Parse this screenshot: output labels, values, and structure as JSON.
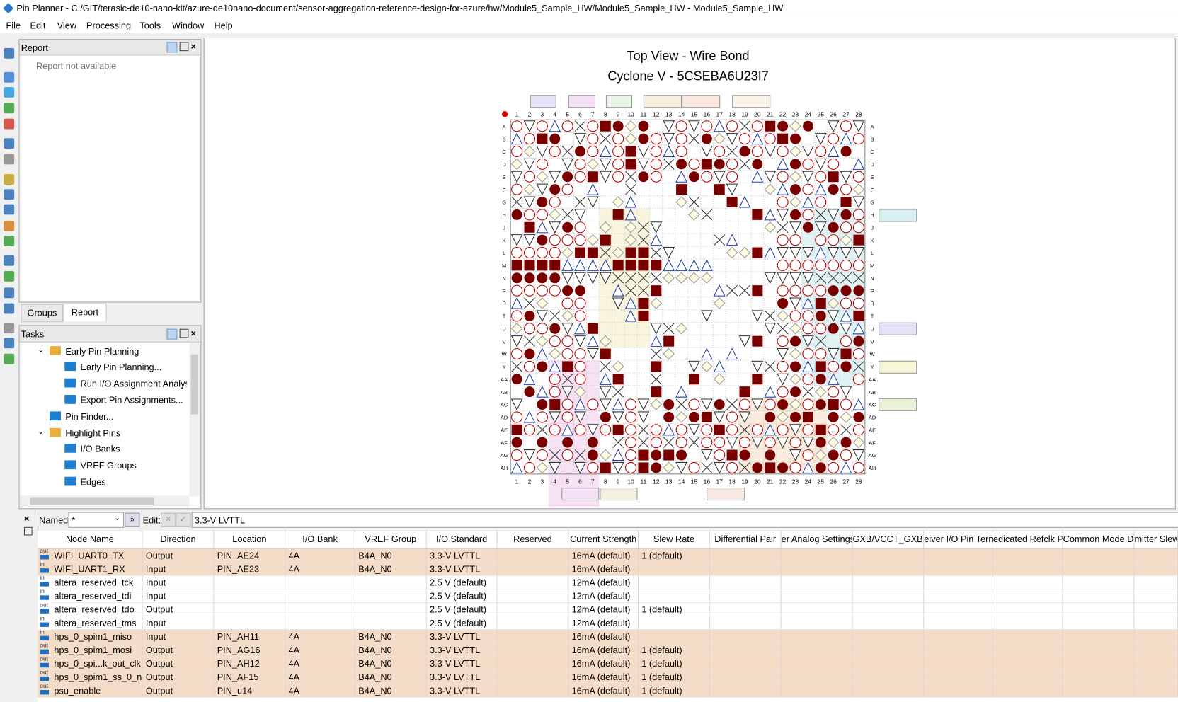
{
  "window": {
    "title": "Pin Planner - C:/GIT/terasic-de10-nano-kit/azure-de10nano-document/sensor-aggregation-reference-design-for-azure/hw/Module5_Sample_HW/Module5_Sample_HW - Module5_Sample_HW"
  },
  "menu": [
    "File",
    "Edit",
    "View",
    "Processing",
    "Tools",
    "Window",
    "Help"
  ],
  "report": {
    "title": "Report",
    "message": "Report not available",
    "tabs": [
      "Groups",
      "Report"
    ]
  },
  "tasks": {
    "title": "Tasks",
    "items": [
      "Early Pin Planning",
      "Early Pin Planning...",
      "Run I/O Assignment Analysi",
      "Export Pin Assignments...",
      "Pin Finder...",
      "Highlight Pins",
      "I/O Banks",
      "VREF Groups",
      "Edges"
    ]
  },
  "package": {
    "title": "Top View - Wire Bond",
    "device": "Cyclone V - 5CSEBA6U23I7",
    "columns": [
      "1",
      "2",
      "3",
      "4",
      "5",
      "6",
      "7",
      "8",
      "9",
      "10",
      "11",
      "12",
      "13",
      "14",
      "15",
      "16",
      "17",
      "18",
      "19",
      "20",
      "21",
      "22",
      "23",
      "24",
      "25",
      "26",
      "27",
      "28"
    ],
    "rows": [
      "A",
      "B",
      "C",
      "D",
      "E",
      "F",
      "G",
      "H",
      "J",
      "K",
      "L",
      "M",
      "N",
      "P",
      "R",
      "T",
      "U",
      "V",
      "W",
      "Y",
      "AA",
      "AB",
      "AC",
      "AD",
      "AE",
      "AF",
      "AG",
      "AH"
    ]
  },
  "filter": {
    "named_label": "Named:",
    "named_value": "*",
    "edit_label": "Edit:",
    "edit_value": "3.3-V LVTTL"
  },
  "table": {
    "columns": [
      "Node Name",
      "Direction",
      "Location",
      "I/O Bank",
      "VREF Group",
      "I/O Standard",
      "Reserved",
      "Current Strength",
      "Slew Rate",
      "Differential Pair",
      "er Analog Settings",
      "GXB/VCCT_GXB V",
      "eiver I/O Pin Term",
      "edicated Refclk Pi",
      "Common Mode D",
      "mitter Slew"
    ],
    "rows": [
      {
        "icon": "out",
        "cells": [
          "WIFI_UART0_TX",
          "Output",
          "PIN_AE24",
          "4A",
          "B4A_N0",
          "3.3-V LVTTL",
          null,
          "16mA (default)",
          "1 (default)"
        ]
      },
      {
        "icon": "in",
        "cells": [
          "WIFI_UART1_RX",
          "Input",
          "PIN_AE23",
          "4A",
          "B4A_N0",
          "3.3-V LVTTL",
          null,
          "16mA (default)",
          null
        ]
      },
      {
        "icon": "in",
        "cells": [
          "altera_reserved_tck",
          "Input",
          null,
          null,
          null,
          "2.5 V (default)",
          null,
          "12mA (default)",
          null
        ]
      },
      {
        "icon": "in",
        "cells": [
          "altera_reserved_tdi",
          "Input",
          null,
          null,
          null,
          "2.5 V (default)",
          null,
          "12mA (default)",
          null
        ]
      },
      {
        "icon": "out",
        "cells": [
          "altera_reserved_tdo",
          "Output",
          null,
          null,
          null,
          "2.5 V (default)",
          null,
          "12mA (default)",
          "1 (default)"
        ]
      },
      {
        "icon": "in",
        "cells": [
          "altera_reserved_tms",
          "Input",
          null,
          null,
          null,
          "2.5 V (default)",
          null,
          "12mA (default)",
          null
        ]
      },
      {
        "icon": "in",
        "cells": [
          "hps_0_spim1_miso",
          "Input",
          "PIN_AH11",
          "4A",
          "B4A_N0",
          "3.3-V LVTTL",
          null,
          "16mA (default)",
          null
        ]
      },
      {
        "icon": "out",
        "cells": [
          "hps_0_spim1_mosi",
          "Output",
          "PIN_AG16",
          "4A",
          "B4A_N0",
          "3.3-V LVTTL",
          null,
          "16mA (default)",
          "1 (default)"
        ]
      },
      {
        "icon": "out",
        "cells": [
          "hps_0_spi...k_out_clk",
          "Output",
          "PIN_AH12",
          "4A",
          "B4A_N0",
          "3.3-V LVTTL",
          null,
          "16mA (default)",
          "1 (default)"
        ]
      },
      {
        "icon": "out",
        "cells": [
          "hps_0_spim1_ss_0_n",
          "Output",
          "PIN_AF15",
          "4A",
          "B4A_N0",
          "3.3-V LVTTL",
          null,
          "16mA (default)",
          "1 (default)"
        ]
      },
      {
        "icon": "out",
        "cells": [
          "psu_enable",
          "Output",
          "PIN_u14",
          "4A",
          "B4A_N0",
          "3.3-V LVTTL",
          null,
          "16mA (default)",
          "1 (default)"
        ]
      }
    ]
  }
}
